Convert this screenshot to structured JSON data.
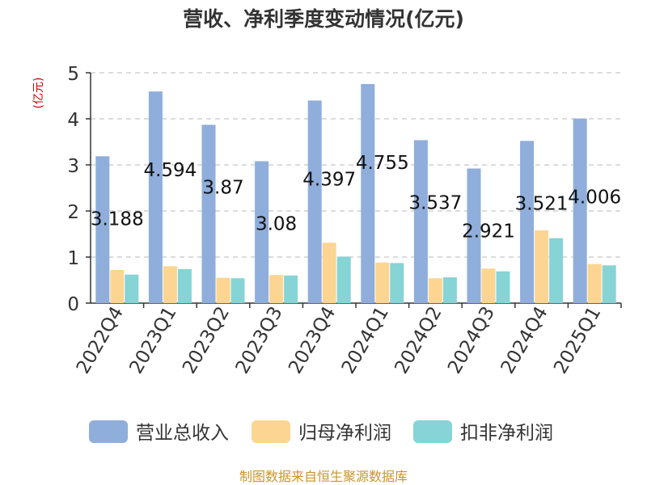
{
  "chart_data": {
    "type": "bar",
    "title": "营收、净利季度变动情况(亿元)",
    "ylabel": "(亿元)",
    "xlabel": "",
    "ylim": [
      0,
      5
    ],
    "yticks": [
      0,
      1,
      2,
      3,
      4,
      5
    ],
    "grid": true,
    "legend_position": "bottom",
    "categories": [
      "2022Q4",
      "2023Q1",
      "2023Q2",
      "2023Q3",
      "2023Q4",
      "2024Q1",
      "2024Q2",
      "2024Q3",
      "2024Q4",
      "2025Q1"
    ],
    "series": [
      {
        "name": "营业总收入",
        "color": "#8faedb",
        "labeled": true,
        "values": [
          3.188,
          4.594,
          3.87,
          3.08,
          4.397,
          4.755,
          3.537,
          2.921,
          3.521,
          4.006
        ]
      },
      {
        "name": "归母净利润",
        "color": "#fcd592",
        "labeled": false,
        "values": [
          0.72,
          0.8,
          0.55,
          0.61,
          1.31,
          0.88,
          0.54,
          0.75,
          1.58,
          0.85
        ]
      },
      {
        "name": "扣非净利润",
        "color": "#86d4d6",
        "labeled": false,
        "values": [
          0.62,
          0.74,
          0.54,
          0.6,
          1.01,
          0.87,
          0.56,
          0.69,
          1.41,
          0.82
        ]
      }
    ]
  },
  "footer": {
    "source": "制图数据来自恒生聚源数据库"
  }
}
